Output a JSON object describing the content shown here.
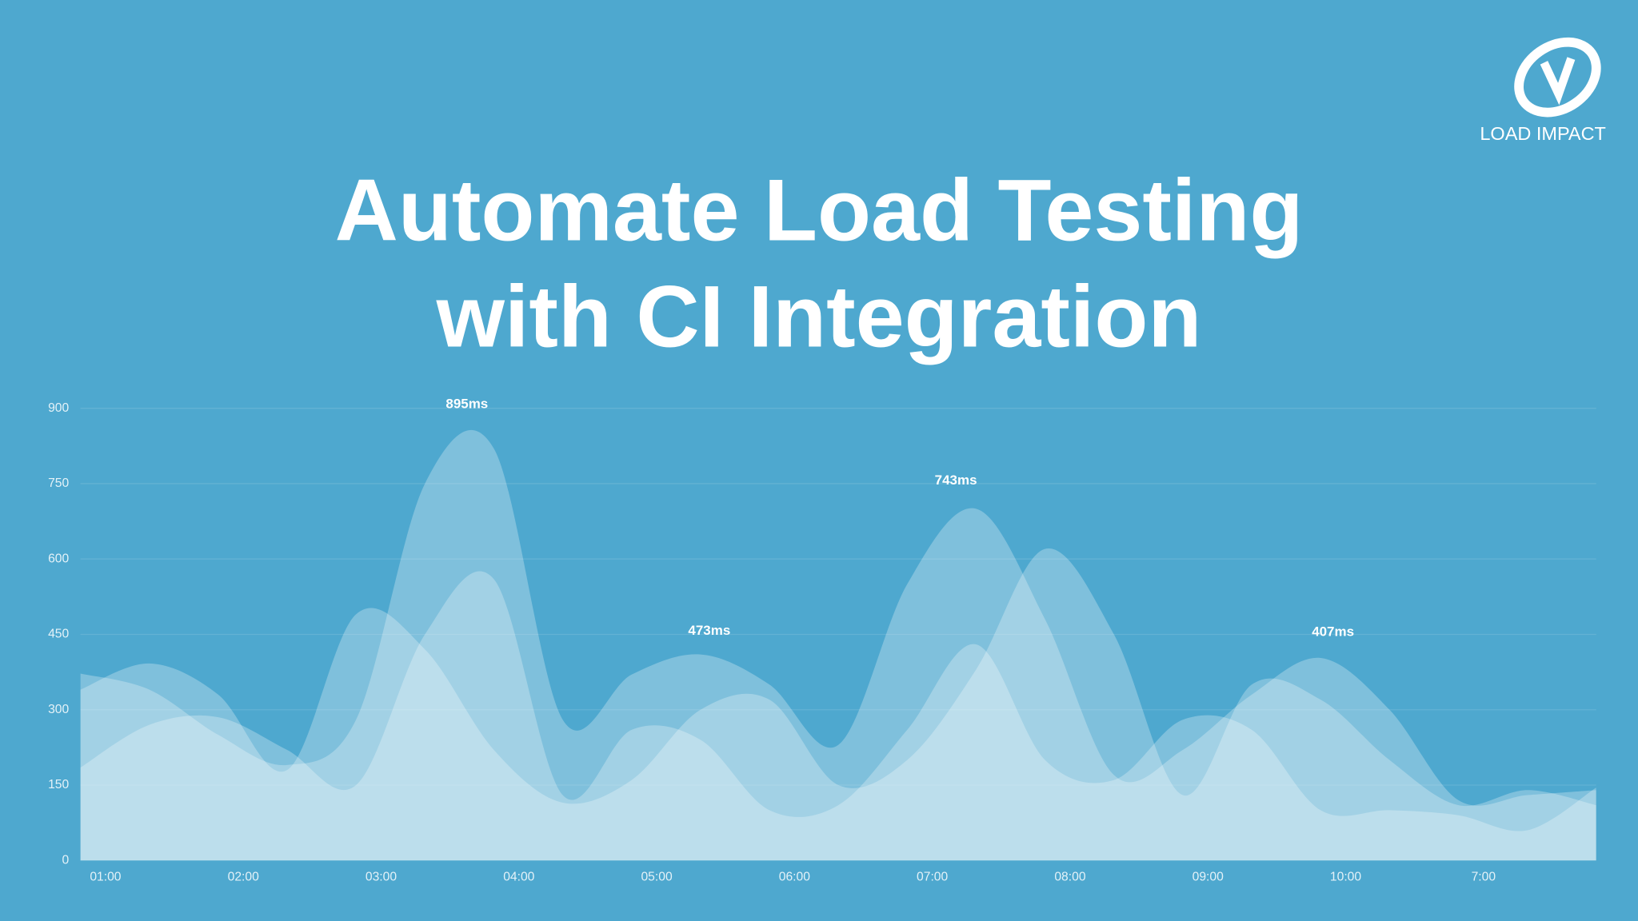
{
  "logo": {
    "text": "LOAD IMPACT"
  },
  "chart_data": {
    "type": "area",
    "title": [
      "Automate Load Testing",
      "with CI Integration"
    ],
    "categories": [
      "01:00",
      null,
      "02:00",
      null,
      "03:00",
      null,
      "04:00",
      null,
      "05:00",
      null,
      "06:00",
      null,
      "07:00",
      null,
      "08:00",
      null,
      "09:00",
      null,
      "10:00",
      null,
      "7:00",
      null,
      null
    ],
    "series": [
      {
        "color": "#ffffff",
        "values": [
          372,
          340,
          250,
          190,
          280,
          750,
          820,
          280,
          370,
          410,
          350,
          230,
          550,
          700,
          480,
          170,
          220,
          330,
          403,
          300,
          120,
          130,
          140
        ]
      },
      {
        "color": "#ffffff",
        "values": [
          340,
          392,
          330,
          180,
          490,
          420,
          220,
          115,
          160,
          300,
          320,
          150,
          200,
          380,
          620,
          450,
          130,
          350,
          320,
          200,
          110,
          140,
          110
        ]
      },
      {
        "color": "#ffffff",
        "values": [
          185,
          270,
          285,
          220,
          150,
          450,
          560,
          130,
          260,
          240,
          100,
          110,
          260,
          430,
          200,
          160,
          280,
          260,
          100,
          100,
          90,
          60,
          145
        ]
      }
    ],
    "annotations": [
      "895ms",
      "473ms",
      "743ms",
      "407ms"
    ],
    "ylim": [
      0,
      900
    ],
    "yticks": [
      0,
      150,
      300,
      450,
      600,
      750,
      900
    ],
    "grid": true
  }
}
